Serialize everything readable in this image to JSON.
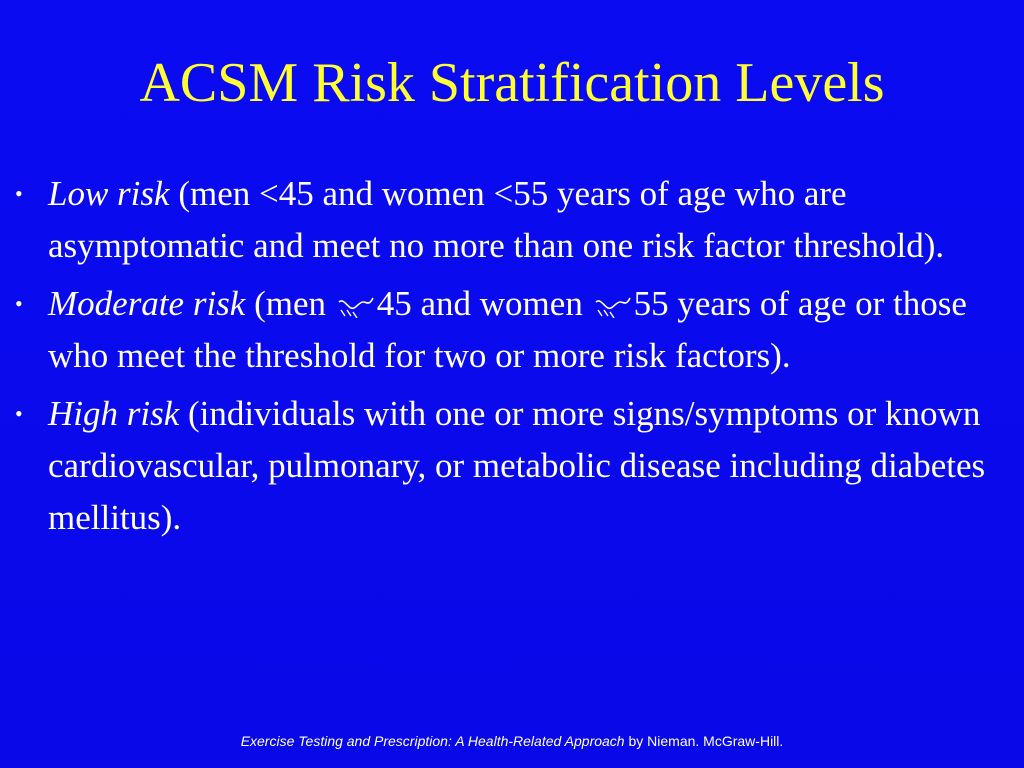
{
  "slide": {
    "title": "ACSM Risk Stratification Levels",
    "colors": {
      "background": "#0a0af0",
      "title": "#ffff33",
      "text": "#ffffff"
    }
  },
  "bullets": [
    {
      "term": "Low risk",
      "text": " (men <45  and women <55 years of age who are asymptomatic and meet no more than one risk factor threshold)."
    },
    {
      "term": "Moderate risk",
      "text_a": " (men ",
      "text_b": "45 and women ",
      "text_c": "55 years of age or those who meet the threshold for two or more risk factors).",
      "symbol": "missing-glyph-icon"
    },
    {
      "term": "High risk",
      "text": " (individuals with one or more signs/symptoms or known cardiovascular, pulmonary, or metabolic disease including diabetes mellitus)."
    }
  ],
  "footer": {
    "book": "Exercise Testing and Prescription:  A Health-Related Approach",
    "rest": " by Nieman. McGraw-Hill."
  }
}
